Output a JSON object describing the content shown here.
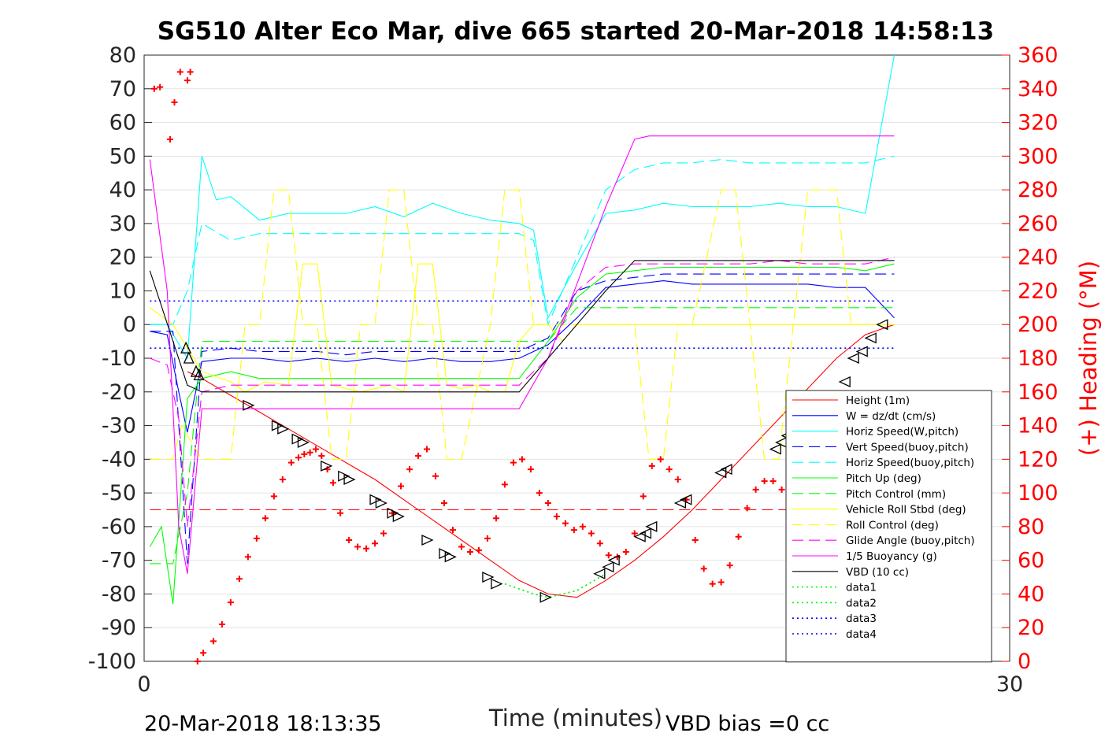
{
  "chart_data": {
    "type": "line",
    "title": "SG510 Alter Eco Mar, dive 665 started 20-Mar-2018 14:58:13",
    "xlabel": "Time (minutes)",
    "ylabel": "",
    "y2label": "(+) Heading (°M)",
    "xlim": [
      0,
      30
    ],
    "ylim": [
      -100,
      80
    ],
    "y2lim": [
      0,
      360
    ],
    "x_ticks": [
      "0",
      "30"
    ],
    "y_ticks": [
      "80",
      "70",
      "60",
      "50",
      "40",
      "30",
      "20",
      "10",
      "0",
      "-10",
      "-20",
      "-30",
      "-40",
      "-50",
      "-60",
      "-70",
      "-80",
      "-90",
      "-100"
    ],
    "y2_ticks": [
      "360",
      "340",
      "320",
      "300",
      "280",
      "260",
      "240",
      "220",
      "200",
      "180",
      "160",
      "140",
      "120",
      "100",
      "80",
      "60",
      "40",
      "20",
      "0"
    ],
    "grid": true,
    "legend_position": "bottom-right",
    "colors": {
      "height": "#ff0000",
      "w": "#0000ff",
      "horiz_speed": "#00ffff",
      "pitch": "#00ff00",
      "roll": "#ffff00",
      "glide": "#ff00ff",
      "buoyancy": "#ff00ff",
      "vbd": "#000000",
      "data1": "#00ff00",
      "data3": "#0000ff",
      "heading": "#ff0000"
    },
    "series": [
      {
        "name": "Height (1m)",
        "color": "#ff0000",
        "style": "solid",
        "x": [
          1.5,
          2,
          3,
          4,
          5,
          6,
          7,
          8,
          9,
          10,
          11,
          12,
          13,
          14,
          15,
          16,
          17,
          18,
          19,
          20,
          21,
          22,
          23,
          24,
          25,
          26
        ],
        "values": [
          -14,
          -16,
          -21,
          -26,
          -31,
          -36,
          -41,
          -46,
          -52,
          -58,
          -64,
          -70,
          -76,
          -80,
          -81,
          -76,
          -70,
          -63,
          -55,
          -46,
          -37,
          -28,
          -19,
          -10,
          -3,
          0
        ]
      },
      {
        "name": "W = dz/dt (cm/s)",
        "color": "#0000ff",
        "style": "solid",
        "x": [
          0.2,
          0.8,
          1.2,
          1.5,
          2,
          3,
          4,
          5,
          6,
          7,
          8,
          9,
          10,
          11,
          12,
          13,
          14,
          15,
          16,
          17,
          18,
          19,
          20,
          21,
          22,
          23,
          24,
          25,
          26
        ],
        "values": [
          -2,
          -3,
          -20,
          -32,
          -11,
          -10,
          -10,
          -11,
          -10,
          -11,
          -10,
          -11,
          -10,
          -11,
          -11,
          -10,
          -6,
          2,
          11,
          12,
          13,
          12,
          12,
          12,
          12,
          12,
          11,
          11,
          2
        ]
      },
      {
        "name": "Horiz Speed(W,pitch)",
        "color": "#00ffff",
        "style": "solid",
        "x": [
          0.2,
          0.8,
          1.5,
          2,
          2.5,
          3,
          4,
          5,
          6,
          7,
          8,
          9,
          10,
          11,
          12,
          13,
          13.5,
          14,
          15,
          16,
          17,
          18,
          19,
          20,
          21,
          22,
          23,
          24,
          25,
          26
        ],
        "values": [
          0,
          0,
          -10,
          50,
          37,
          38,
          31,
          33,
          33,
          33,
          35,
          32,
          36,
          33,
          31,
          30,
          28,
          2,
          18,
          33,
          34,
          36,
          35,
          35,
          35,
          36,
          35,
          35,
          33,
          80
        ]
      },
      {
        "name": "Vert Speed(buoy,pitch)",
        "color": "#0000ff",
        "style": "dash",
        "x": [
          0.2,
          1,
          1.5,
          2,
          3,
          4,
          5,
          6,
          7,
          8,
          9,
          10,
          11,
          12,
          13,
          14,
          15,
          16,
          17,
          18,
          19,
          20,
          21,
          22,
          23,
          24,
          25,
          26
        ],
        "values": [
          -2,
          -2,
          -71,
          -8,
          -7,
          -8,
          -8,
          -8,
          -9,
          -8,
          -8,
          -8,
          -8,
          -8,
          -8,
          -4,
          10,
          13,
          14,
          15,
          15,
          15,
          15,
          15,
          15,
          15,
          15,
          15
        ]
      },
      {
        "name": "Horiz Speed(buoy,pitch)",
        "color": "#00ffff",
        "style": "dash",
        "x": [
          0.2,
          1,
          1.5,
          2,
          3,
          4,
          5,
          6,
          7,
          8,
          9,
          10,
          11,
          12,
          13,
          13.5,
          14,
          15,
          16,
          17,
          18,
          19,
          20,
          21,
          22,
          23,
          24,
          25,
          26
        ],
        "values": [
          0,
          0,
          10,
          30,
          25,
          27,
          27,
          27,
          27,
          27,
          27,
          27,
          27,
          27,
          27,
          25,
          0,
          20,
          40,
          46,
          48,
          48,
          49,
          48,
          48,
          48,
          48,
          48,
          50
        ]
      },
      {
        "name": "Pitch Up (deg)",
        "color": "#00ff00",
        "style": "solid",
        "x": [
          0.2,
          0.6,
          1,
          1.5,
          2,
          3,
          4,
          5,
          6,
          7,
          8,
          9,
          10,
          11,
          12,
          13,
          14,
          15,
          16,
          17,
          18,
          19,
          20,
          21,
          22,
          23,
          24,
          25,
          26
        ],
        "values": [
          -66,
          -60,
          -83,
          -22,
          -16,
          -14,
          -16,
          -16,
          -16,
          -16,
          -16,
          -16,
          -16,
          -16,
          -16,
          -16,
          -5,
          8,
          15,
          16,
          17,
          17,
          17,
          17,
          17,
          17,
          17,
          16,
          18
        ]
      },
      {
        "name": "Pitch Control (mm)",
        "color": "#00ff00",
        "style": "dash",
        "x": [
          0.2,
          1,
          1.5,
          2,
          4,
          8,
          12,
          13,
          14,
          14.5,
          15,
          18,
          22,
          26
        ],
        "values": [
          -71,
          -71,
          -50,
          -5,
          -5,
          -5,
          -5,
          -5,
          -5,
          0,
          5,
          5,
          5,
          5
        ]
      },
      {
        "name": "Vehicle Roll Stbd (deg)",
        "color": "#ffff00",
        "style": "solid",
        "x": [
          0.2,
          1,
          2,
          3,
          3.5,
          4.2,
          5,
          5.5,
          6,
          6.5,
          7,
          7.5,
          8,
          8.5,
          9,
          9.5,
          10,
          10.5,
          11,
          11.5,
          12,
          12.5,
          13,
          13.5,
          14,
          14.5,
          15,
          17,
          19,
          21,
          23,
          25,
          26
        ],
        "values": [
          5,
          0,
          -14,
          -17,
          -20,
          -17,
          -18,
          18,
          18,
          -18,
          -19,
          -20,
          -19,
          -18,
          -20,
          18,
          18,
          -18,
          -19,
          -18,
          -20,
          -20,
          -5,
          0,
          0,
          -5,
          0,
          0,
          0,
          0,
          0,
          0,
          0
        ]
      },
      {
        "name": "Roll Control (deg)",
        "color": "#ffff00",
        "style": "dash",
        "x": [
          0.2,
          1,
          1.3,
          2,
          3,
          3.5,
          4,
          4.5,
          5,
          5.5,
          6,
          6.5,
          7,
          7.5,
          8,
          8.5,
          9,
          9.5,
          10,
          10.5,
          11,
          12,
          12.5,
          13,
          13.5,
          14,
          15,
          16,
          17,
          17.5,
          18,
          18.5,
          19,
          20,
          20.5,
          21,
          21.5,
          22,
          22.5,
          23,
          24,
          24.5,
          25,
          26
        ],
        "values": [
          -40,
          -40,
          -30,
          -40,
          -40,
          0,
          0,
          40,
          40,
          0,
          0,
          -40,
          -40,
          0,
          0,
          40,
          40,
          0,
          0,
          -40,
          -40,
          0,
          40,
          40,
          0,
          0,
          0,
          0,
          0,
          -40,
          -40,
          0,
          0,
          40,
          40,
          0,
          -40,
          -40,
          0,
          40,
          40,
          0,
          0,
          0
        ]
      },
      {
        "name": "Glide Angle (buoy,pitch)",
        "color": "#ff00ff",
        "style": "dash",
        "x": [
          0.2,
          0.8,
          1.2,
          1.5,
          2,
          3,
          4,
          5,
          6,
          7,
          8,
          9,
          10,
          11,
          12,
          13,
          14,
          15,
          16,
          17,
          18,
          19,
          20,
          21,
          22,
          23,
          24,
          25,
          26
        ],
        "values": [
          -10,
          -12,
          -28,
          -60,
          -20,
          -18,
          -18,
          -18,
          -18,
          -18,
          -18,
          -18,
          -18,
          -18,
          -18,
          -18,
          -10,
          10,
          17,
          18,
          18,
          18,
          18,
          18,
          19,
          18,
          18,
          18,
          20
        ]
      },
      {
        "name": "1/5 Buoyancy (g)",
        "color": "#ff00ff",
        "style": "solid",
        "x": [
          0.2,
          0.8,
          1.2,
          1.5,
          2,
          4,
          6,
          8,
          10,
          12,
          13,
          14,
          15,
          16,
          17,
          17.5,
          19,
          21,
          23,
          25,
          26
        ],
        "values": [
          49,
          10,
          -60,
          -74,
          -25,
          -25,
          -25,
          -25,
          -25,
          -25,
          -25,
          -10,
          12,
          35,
          55,
          56,
          56,
          56,
          56,
          56,
          56
        ]
      },
      {
        "name": "VBD (10 cc)",
        "color": "#000000",
        "style": "solid",
        "x": [
          0.2,
          1.5,
          2,
          4,
          6,
          8,
          10,
          12,
          13,
          14,
          15,
          16,
          17,
          19,
          21,
          23,
          25,
          26
        ],
        "values": [
          16,
          -18,
          -20,
          -20,
          -20,
          -20,
          -20,
          -20,
          -20,
          -10,
          0,
          10,
          19,
          19,
          19,
          19,
          19,
          19
        ]
      },
      {
        "name": "data1",
        "color": "#00ff00",
        "style": "dot",
        "x": [
          12.5,
          13.5,
          14,
          15,
          16
        ],
        "values": [
          -77,
          -80,
          -81,
          -79,
          -74
        ]
      },
      {
        "name": "data2",
        "color": "#00ff00",
        "style": "dot",
        "x": [
          12.5,
          13.5,
          14,
          15,
          16
        ],
        "values": [
          -77,
          -80,
          -81,
          -79,
          -74
        ]
      },
      {
        "name": "data3",
        "color": "#0000ff",
        "style": "dot",
        "x": [
          0.2,
          26
        ],
        "values": [
          7,
          7
        ]
      },
      {
        "name": "data4",
        "color": "#0000ff",
        "style": "dot",
        "x": [
          0.2,
          26
        ],
        "values": [
          -7,
          -7
        ]
      }
    ],
    "reference_lines": [
      {
        "axis": "y2",
        "value": 90,
        "color": "#ff0000",
        "style": "dash",
        "x": [
          0.2,
          26
        ]
      }
    ],
    "heading_points": {
      "x": [
        0.35,
        0.55,
        0.9,
        1.05,
        1.25,
        1.5,
        1.6,
        1.85,
        2.05,
        2.4,
        2.7,
        3.0,
        3.3,
        3.6,
        3.9,
        4.2,
        4.5,
        4.8,
        5.1,
        5.35,
        5.55,
        5.75,
        5.95,
        6.15,
        6.35,
        6.55,
        6.8,
        7.1,
        7.4,
        7.7,
        8.0,
        8.3,
        8.6,
        8.9,
        9.2,
        9.5,
        9.8,
        10.1,
        10.4,
        10.7,
        11.0,
        11.3,
        11.6,
        11.9,
        12.2,
        12.5,
        12.8,
        13.1,
        13.4,
        13.7,
        14.0,
        14.3,
        14.6,
        14.9,
        15.2,
        15.5,
        15.8,
        16.1,
        16.4,
        16.7,
        17.0,
        17.3,
        17.6,
        17.9,
        18.2,
        18.5,
        18.8,
        19.1,
        19.4,
        19.7,
        20.0,
        20.3,
        20.6,
        20.9,
        21.2,
        21.5,
        21.8,
        22.1,
        22.4,
        22.7,
        23.0,
        23.3
      ],
      "values": [
        340,
        341,
        310,
        332,
        350,
        345,
        350,
        0,
        5,
        12,
        22,
        35,
        49,
        62,
        73,
        85,
        98,
        108,
        118,
        121,
        123,
        124,
        126,
        122,
        114,
        106,
        88,
        72,
        68,
        67,
        70,
        76,
        88,
        104,
        114,
        122,
        126,
        110,
        94,
        78,
        68,
        65,
        66,
        73,
        85,
        105,
        118,
        120,
        114,
        100,
        94,
        86,
        82,
        78,
        80,
        76,
        70,
        63,
        62,
        65,
        76,
        98,
        116,
        120,
        114,
        108,
        96,
        72,
        55,
        46,
        47,
        57,
        74,
        91,
        102,
        107,
        107,
        102,
        90,
        71,
        54,
        38
      ]
    },
    "triangles": {
      "x": [
        1.45,
        1.55,
        1.8,
        1.9,
        3.6,
        4.6,
        4.8,
        5.3,
        5.5,
        6.3,
        6.9,
        7.1,
        8.0,
        8.2,
        8.6,
        8.8,
        9.8,
        10.4,
        10.6,
        11.9,
        12.2,
        13.9,
        15.8,
        16.1,
        16.3,
        17.2,
        17.4,
        17.6,
        18.6,
        18.8,
        20.0,
        20.2,
        21.9,
        22.1,
        22.3,
        22.9,
        24.3,
        24.6,
        24.9,
        25.2,
        25.6
      ],
      "values": [
        -7,
        -10,
        -14,
        -15,
        -24,
        -30,
        -31,
        -34,
        -35,
        -42,
        -45,
        -46,
        -52,
        -53,
        -56,
        -57,
        -64,
        -68,
        -69,
        -75,
        -77,
        -81,
        -74,
        -72,
        -70,
        -63,
        -62,
        -60,
        -53,
        -52,
        -44,
        -43,
        -37,
        -35,
        -33,
        -26,
        -17,
        -10,
        -8,
        -4,
        0
      ]
    }
  },
  "footer": {
    "timestamp": "20-Mar-2018 18:13:35",
    "vbd_bias": "VBD bias =0 cc"
  }
}
